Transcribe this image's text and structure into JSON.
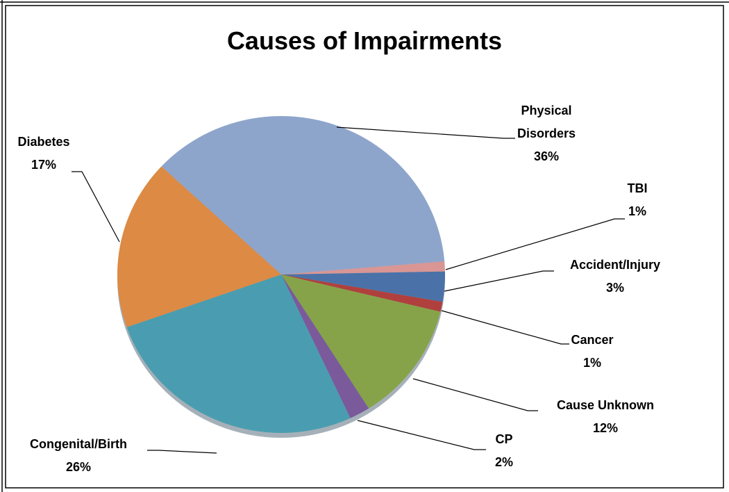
{
  "chart_data": {
    "type": "pie",
    "title": "Causes of Impairments",
    "categories": [
      "Physical Disorders",
      "TBI",
      "Accident/Injury",
      "Cancer",
      "Cause Unknown",
      "CP",
      "Congenital/Birth",
      "Diabetes"
    ],
    "values": [
      36,
      1,
      3,
      1,
      12,
      2,
      26,
      17
    ],
    "value_labels": [
      "36%",
      "1%",
      "3%",
      "1%",
      "12%",
      "2%",
      "26%",
      "17%"
    ],
    "colors": [
      "#8ea5cb",
      "#d99694",
      "#4a72a8",
      "#b0403d",
      "#86a349",
      "#7a5a9b",
      "#4a9db0",
      "#dc8a44"
    ]
  }
}
